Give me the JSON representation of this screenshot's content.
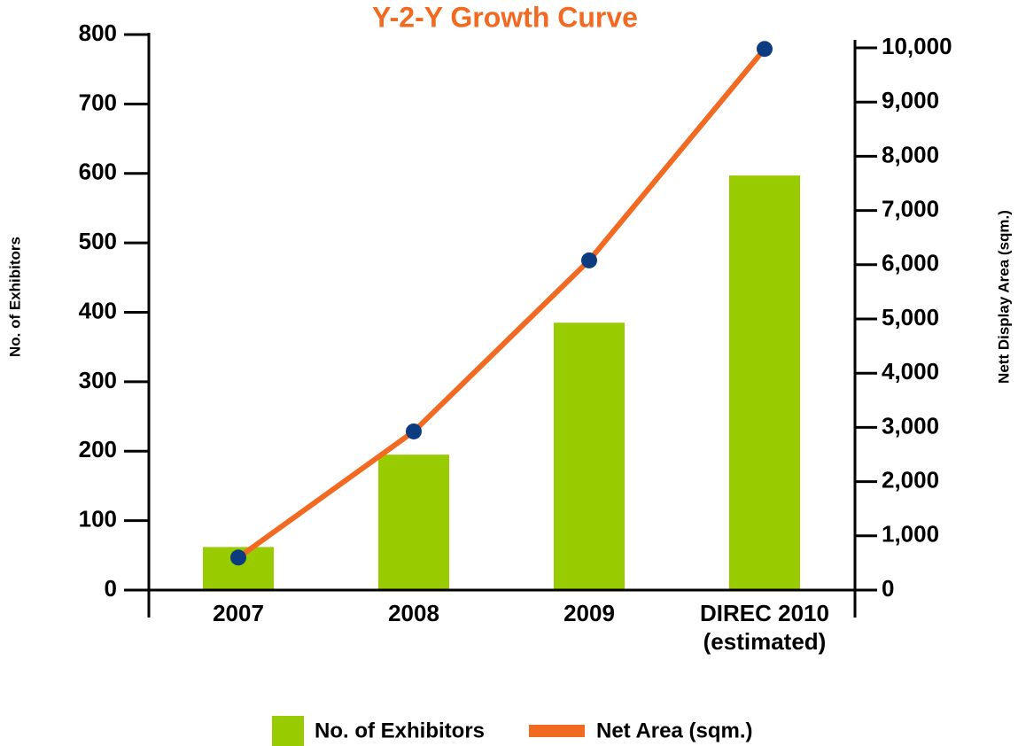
{
  "chart_data": {
    "type": "bar-line",
    "title": "Y-2-Y Growth Curve",
    "categories": [
      "2007",
      "2008",
      "2009",
      "DIREC 2010\n(estimated)"
    ],
    "series": [
      {
        "name": "No. of Exhibitors",
        "type": "bar",
        "color": "#99cc00",
        "values": [
          62,
          195,
          385,
          597
        ]
      },
      {
        "name": "Net Area (sqm.)",
        "type": "line",
        "axis": "y2",
        "color": "#f26a21",
        "marker_color": "#0d3b80",
        "values": [
          600,
          2925,
          6080,
          9980
        ]
      }
    ],
    "ylabel": "No. of Exhibitors",
    "y2label": "Nett Display Area (sqm.)",
    "ylim": [
      0,
      800
    ],
    "yticks": [
      0,
      100,
      200,
      300,
      400,
      500,
      600,
      700,
      800
    ],
    "y2lim": [
      0,
      10000
    ],
    "y2ticks": [
      0,
      {
        "value": 1000,
        "label": "1,000"
      },
      {
        "value": 2000,
        "label": "2,000"
      },
      {
        "value": 3000,
        "label": "3,000"
      },
      {
        "value": 4000,
        "label": "4,000"
      },
      {
        "value": 5000,
        "label": "5,000"
      },
      {
        "value": 6000,
        "label": "6,000"
      },
      {
        "value": 7000,
        "label": "7,000"
      },
      {
        "value": 8000,
        "label": "8,000"
      },
      {
        "value": 9000,
        "label": "9,000"
      },
      {
        "value": 10000,
        "label": "10,000"
      }
    ],
    "legend": "bottom"
  }
}
